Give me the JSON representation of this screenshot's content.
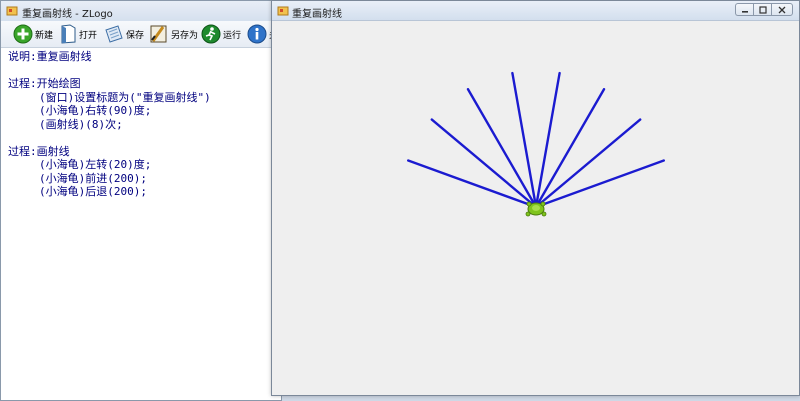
{
  "editor": {
    "title": "重复画射线 - ZLogo",
    "toolbar": [
      {
        "name": "new",
        "label": "新建"
      },
      {
        "name": "open",
        "label": "打开"
      },
      {
        "name": "save",
        "label": "保存"
      },
      {
        "name": "save-as",
        "label": "另存为"
      },
      {
        "name": "run",
        "label": "运行"
      },
      {
        "name": "about",
        "label": "关"
      }
    ],
    "code_lines": [
      "说明:重复画射线",
      "",
      "过程:开始绘图",
      "(窗口)设置标题为(\"重复画射线\")",
      "(小海龟)右转(90)度;",
      "(画射线)(8)次;",
      "",
      "过程:画射线",
      "(小海龟)左转(20)度;",
      "(小海龟)前进(200);",
      "(小海龟)后退(200);"
    ]
  },
  "canvas_window": {
    "title": "重复画射线",
    "controls": [
      "minimize",
      "maximize",
      "close"
    ]
  },
  "drawing": {
    "ray_color": "#1b1bd0",
    "turtle_color": "#7fc41c",
    "ray_count": 8,
    "turn_degrees": 20,
    "ray_length": 200,
    "initial_right_turn": 90
  }
}
